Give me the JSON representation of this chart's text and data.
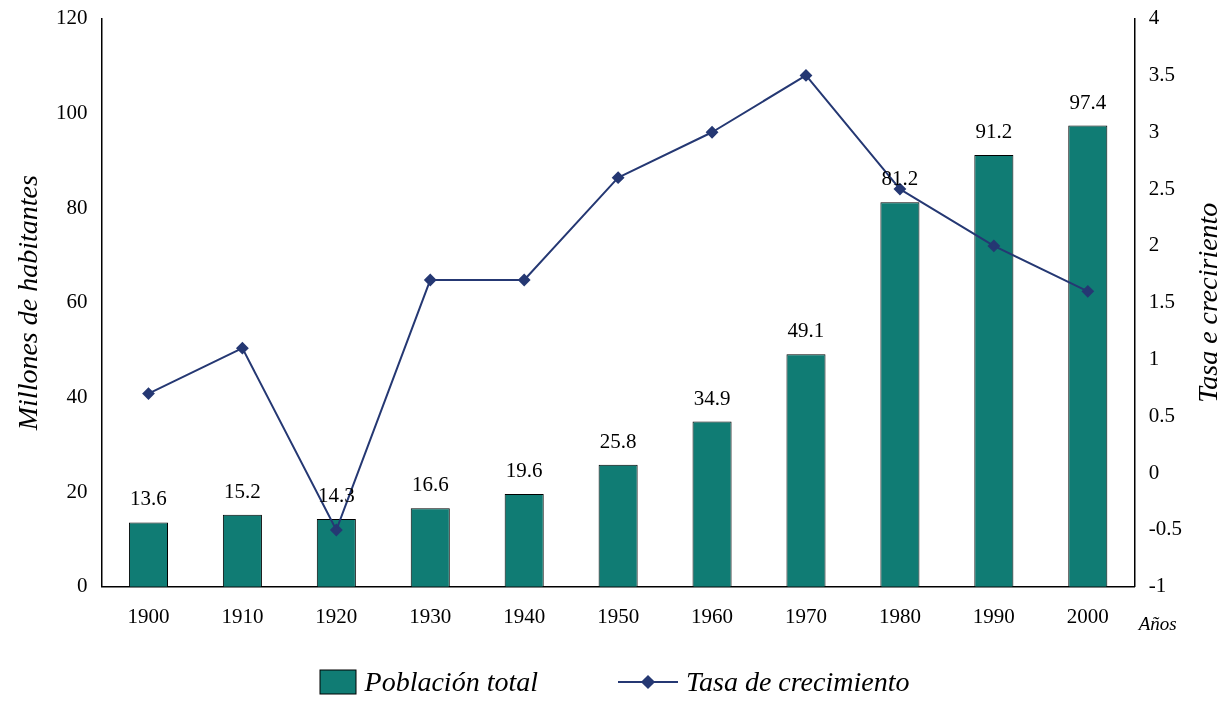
{
  "chart_data": {
    "type": "bar",
    "xlabel": "Años",
    "ylabel": "Millones de habitantes",
    "y2label": "Tasa e creciriento",
    "categories": [
      "1900",
      "1910",
      "1920",
      "1930",
      "1940",
      "1950",
      "1960",
      "1970",
      "1980",
      "1990",
      "2000"
    ],
    "series": [
      {
        "name": "Población total",
        "color": "#107c74",
        "values": [
          13.6,
          15.2,
          14.3,
          16.6,
          19.6,
          25.8,
          34.9,
          49.1,
          81.2,
          91.2,
          97.4
        ],
        "value_labels": [
          "13.6",
          "15.2",
          "14.3",
          "16.6",
          "19.6",
          "25.8",
          "34.9",
          "49.1",
          "81.2",
          "91.2",
          "97.4"
        ]
      },
      {
        "name": "Tasa de crecimiento",
        "type": "line",
        "axis": "y2",
        "color": "#253873",
        "marker": "diamond",
        "values": [
          0.7,
          1.1,
          -0.5,
          1.7,
          1.7,
          2.6,
          3.0,
          3.5,
          2.5,
          2.0,
          1.6
        ]
      }
    ],
    "grid": false,
    "legend": "bottom",
    "ylim": [
      0,
      120
    ],
    "yticks": [
      0,
      20,
      40,
      60,
      80,
      100,
      120
    ],
    "y2lim": [
      -1,
      4
    ],
    "y2ticks": [
      -1,
      {
        "value": -0.5,
        "label": "-0.5"
      },
      0,
      {
        "value": 0.5,
        "label": "0.5"
      },
      1,
      {
        "value": 1.5,
        "label": "1.5"
      },
      2,
      {
        "value": 2.5,
        "label": "2.5"
      },
      3,
      {
        "value": 3.5,
        "label": "3.5"
      },
      4
    ]
  }
}
